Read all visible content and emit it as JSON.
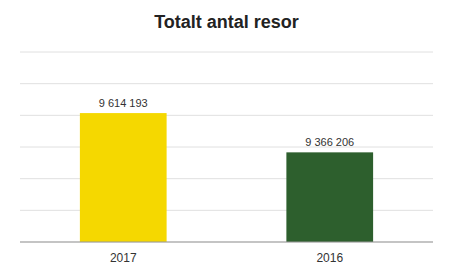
{
  "chart_data": {
    "type": "bar",
    "title": "Totalt antal resor",
    "categories": [
      "2017",
      "2016"
    ],
    "values": [
      9614193,
      9366206
    ],
    "value_labels": [
      "9 614 193",
      "9 366 206"
    ],
    "colors": [
      "#F5D800",
      "#2D5F2D"
    ],
    "ylim": [
      8800000,
      10000000
    ],
    "yticks": [
      8800000,
      9000000,
      9200000,
      9400000,
      9600000,
      9800000,
      10000000
    ],
    "grid": true,
    "data_labels": true,
    "tick_labels": "x"
  }
}
